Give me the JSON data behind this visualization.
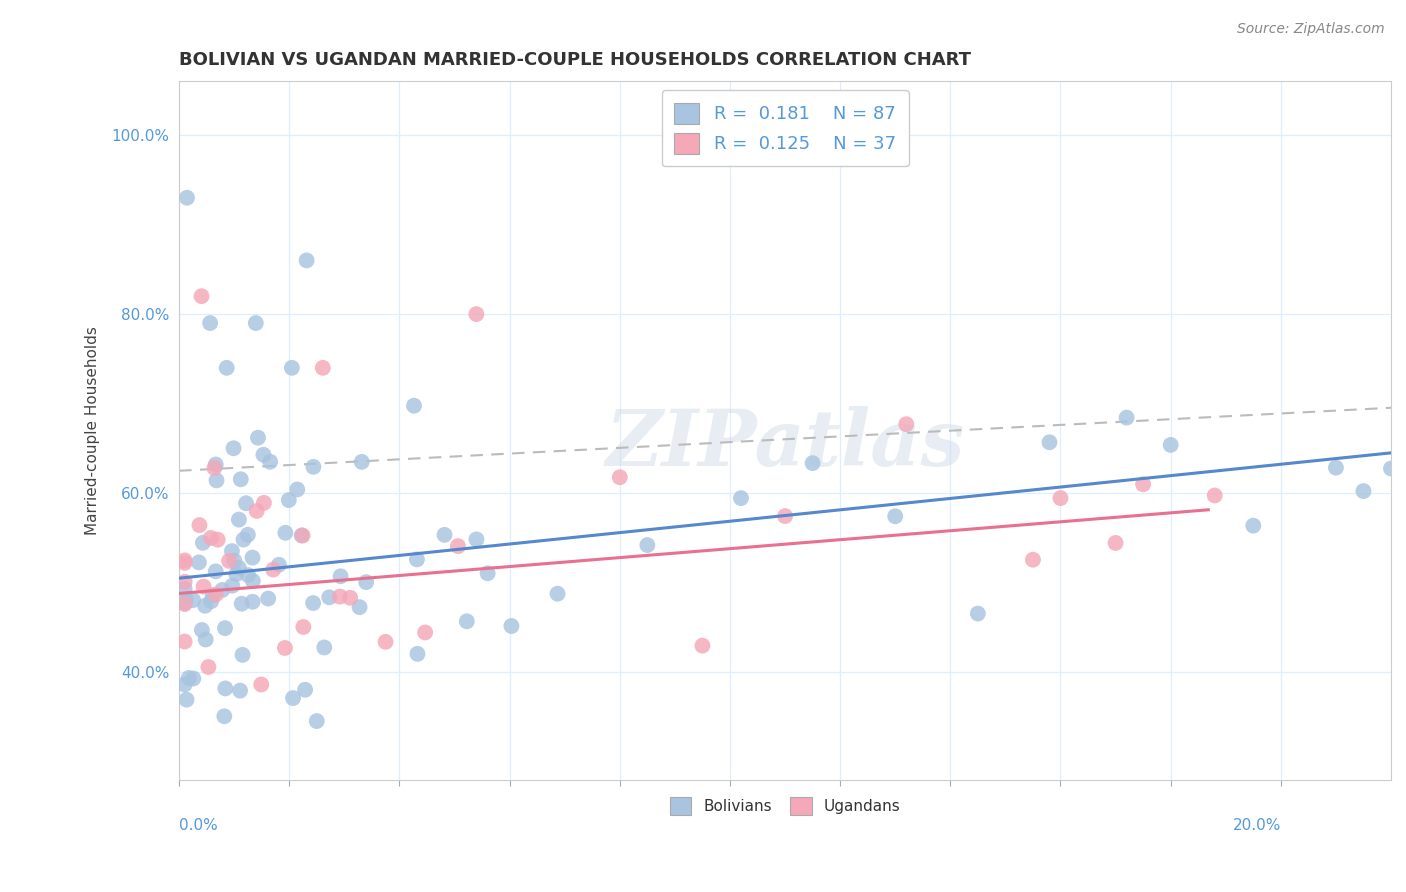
{
  "title": "BOLIVIAN VS UGANDAN MARRIED-COUPLE HOUSEHOLDS CORRELATION CHART",
  "source": "Source: ZipAtlas.com",
  "ylabel": "Married-couple Households",
  "bolivian_R": 0.181,
  "bolivian_N": 87,
  "ugandan_R": 0.125,
  "ugandan_N": 37,
  "bolivian_color": "#a8c4e0",
  "ugandan_color": "#f4a8b8",
  "bolivian_line_color": "#5588cc",
  "ugandan_line_color": "#e87090",
  "trend_line_color": "#aaaaaa",
  "watermark": "ZIPatlas",
  "xlim": [
    0,
    22
  ],
  "ylim": [
    0.28,
    1.06
  ],
  "ytick_vals": [
    0.4,
    0.6,
    0.8,
    1.0
  ],
  "ytick_labels": [
    "40.0%",
    "60.0%",
    "80.0%",
    "100.0%"
  ]
}
